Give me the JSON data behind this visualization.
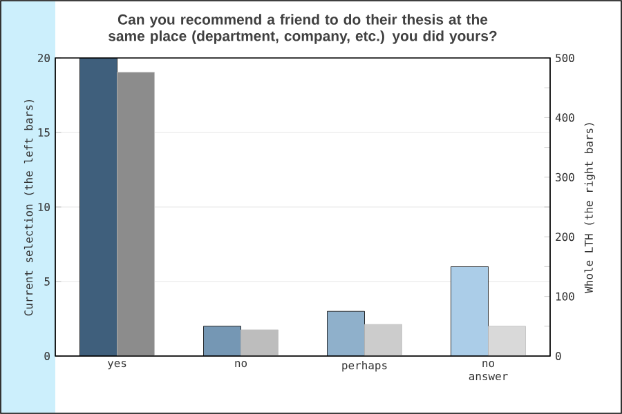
{
  "chart_data": {
    "type": "bar",
    "title": "Can you recommend a friend to do their thesis at the same place (department, company, etc.) you did yours?",
    "ylabel": "Current selection (the left bars)",
    "y2label": "Whole LTH (the right bars)",
    "categories": [
      "yes",
      "no",
      "perhaps",
      "no answer"
    ],
    "series": [
      {
        "colors": [
          "#3f5f7c",
          "#7597b4",
          "#8fb0cb",
          "#abcde8"
        ],
        "values": [
          20,
          2,
          3,
          6
        ]
      },
      {
        "colors": [
          "#8c8c8c",
          "#bdbdbd",
          "#cccccc",
          "#d9d9d9"
        ],
        "values": [
          476,
          44,
          53,
          50
        ],
        "axis": "y2"
      }
    ],
    "ylim": [
      0,
      20
    ],
    "yticks": [
      0,
      5,
      10,
      15,
      20
    ],
    "y2lim": [
      0,
      500
    ],
    "y2ticks": [
      0,
      {
        "value": 50,
        "label": null
      },
      100,
      {
        "value": 150,
        "label": null
      },
      200,
      {
        "value": 250,
        "label": null
      },
      300,
      {
        "value": 350,
        "label": null
      },
      400,
      {
        "value": 450,
        "label": null
      },
      500
    ],
    "grid": "y"
  }
}
